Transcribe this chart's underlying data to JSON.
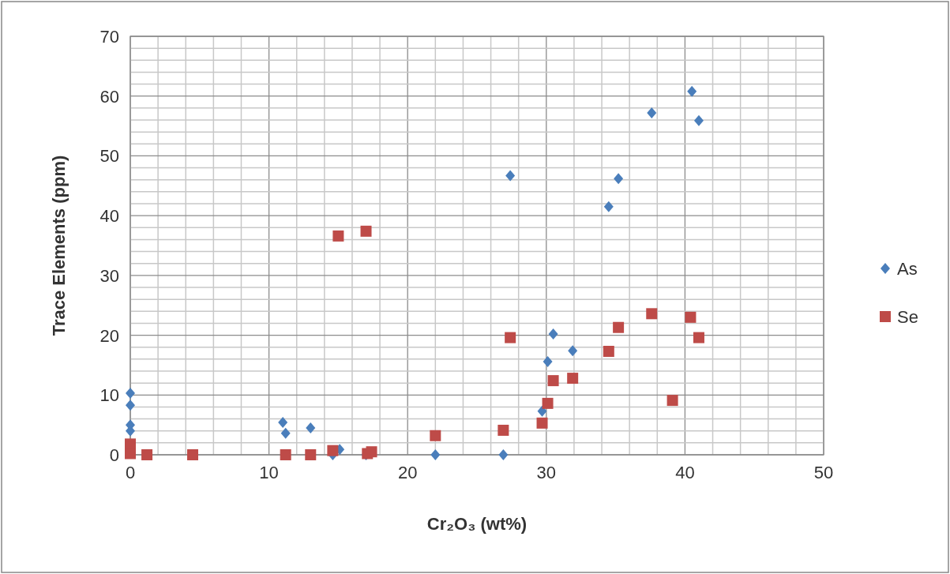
{
  "chart_data": {
    "type": "scatter",
    "xlabel": "Cr₂O₃ (wt%)",
    "ylabel": "Trace Elements (ppm)",
    "xlim": [
      0,
      50
    ],
    "ylim": [
      0,
      70
    ],
    "xticks": [
      0,
      {
        "value": 2,
        "label": null
      },
      {
        "value": 4,
        "label": null
      },
      {
        "value": 6,
        "label": null
      },
      {
        "value": 8,
        "label": null
      },
      10,
      {
        "value": 12,
        "label": null
      },
      {
        "value": 14,
        "label": null
      },
      {
        "value": 16,
        "label": null
      },
      {
        "value": 18,
        "label": null
      },
      20,
      {
        "value": 22,
        "label": null
      },
      {
        "value": 24,
        "label": null
      },
      {
        "value": 26,
        "label": null
      },
      {
        "value": 28,
        "label": null
      },
      30,
      {
        "value": 32,
        "label": null
      },
      {
        "value": 34,
        "label": null
      },
      {
        "value": 36,
        "label": null
      },
      {
        "value": 38,
        "label": null
      },
      40,
      {
        "value": 42,
        "label": null
      },
      {
        "value": 44,
        "label": null
      },
      {
        "value": 46,
        "label": null
      },
      {
        "value": 48,
        "label": null
      },
      50
    ],
    "yticks": [
      0,
      {
        "value": 2,
        "label": null
      },
      {
        "value": 4,
        "label": null
      },
      {
        "value": 6,
        "label": null
      },
      {
        "value": 8,
        "label": null
      },
      10,
      {
        "value": 12,
        "label": null
      },
      {
        "value": 14,
        "label": null
      },
      {
        "value": 16,
        "label": null
      },
      {
        "value": 18,
        "label": null
      },
      20,
      {
        "value": 22,
        "label": null
      },
      {
        "value": 24,
        "label": null
      },
      {
        "value": 26,
        "label": null
      },
      {
        "value": 28,
        "label": null
      },
      30,
      {
        "value": 32,
        "label": null
      },
      {
        "value": 34,
        "label": null
      },
      {
        "value": 36,
        "label": null
      },
      {
        "value": 38,
        "label": null
      },
      40,
      {
        "value": 42,
        "label": null
      },
      {
        "value": 44,
        "label": null
      },
      {
        "value": 46,
        "label": null
      },
      {
        "value": 48,
        "label": null
      },
      50,
      {
        "value": 52,
        "label": null
      },
      {
        "value": 54,
        "label": null
      },
      {
        "value": 56,
        "label": null
      },
      {
        "value": 58,
        "label": null
      },
      60,
      {
        "value": 62,
        "label": null
      },
      {
        "value": 64,
        "label": null
      },
      {
        "value": 66,
        "label": null
      },
      {
        "value": 68,
        "label": null
      },
      70
    ],
    "grid": true,
    "legend": "right",
    "series": [
      {
        "name": "As",
        "color": "#4a7ebb",
        "marker": "diamond",
        "x": [
          0,
          0,
          0,
          0,
          11.0,
          11.2,
          13.0,
          14.6,
          15.1,
          17.0,
          22.0,
          26.9,
          27.4,
          29.7,
          30.1,
          30.5,
          31.9,
          34.5,
          35.2,
          37.6,
          40.5,
          41.0
        ],
        "values": [
          10.3,
          8.3,
          5.0,
          4.0,
          5.4,
          3.6,
          4.5,
          0,
          0.9,
          0,
          0,
          0,
          46.7,
          7.3,
          15.6,
          20.2,
          17.4,
          41.5,
          46.2,
          57.2,
          60.8,
          55.9
        ]
      },
      {
        "name": "Se",
        "color": "#be4b48",
        "marker": "square",
        "x": [
          0,
          0,
          1.2,
          4.5,
          11.2,
          13.0,
          14.6,
          15.0,
          17.0,
          17.1,
          17.4,
          22.0,
          26.9,
          27.4,
          29.7,
          30.1,
          30.5,
          31.9,
          34.5,
          35.2,
          37.6,
          39.1,
          40.4,
          41.0
        ],
        "values": [
          1.8,
          0.2,
          0,
          0,
          0,
          0,
          0.7,
          36.6,
          37.4,
          0.2,
          0.5,
          3.2,
          4.1,
          19.6,
          5.3,
          8.6,
          12.4,
          12.8,
          17.3,
          21.3,
          23.6,
          9.1,
          23.0,
          19.6
        ]
      }
    ]
  }
}
